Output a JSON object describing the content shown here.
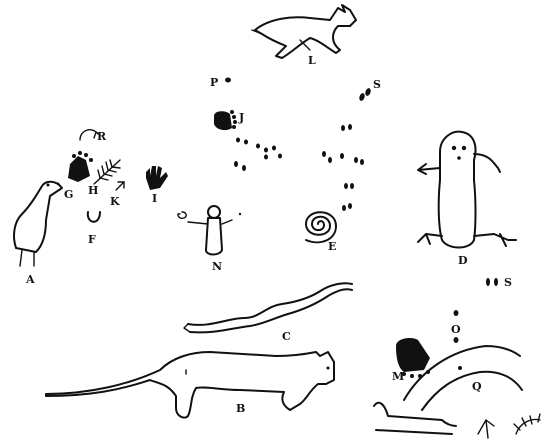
{
  "figure": {
    "labels": {
      "A": "A",
      "B": "B",
      "C": "C",
      "D": "D",
      "E": "E",
      "F": "F",
      "G": "G",
      "H": "H",
      "I": "I",
      "J": "J",
      "K": "K",
      "L": "L",
      "M": "M",
      "N": "N",
      "O": "O",
      "P": "P",
      "Q": "Q",
      "R": "R",
      "S1": "S",
      "S2": "S"
    },
    "glyphs": {
      "A": "bird-figure",
      "B": "panther-figure",
      "C": "serpent-figure",
      "D": "frog-figure",
      "E": "spiral",
      "F": "horseshoe",
      "G": "bear-paw",
      "H": "branch",
      "I": "hand-print",
      "J": "bear-paw",
      "K": "arrow",
      "L": "deer-figure",
      "M": "bear-paw",
      "N": "human-figure",
      "O": "dot",
      "P": "dot",
      "Q": "curved-lines",
      "R": "bow",
      "S": "tracks"
    },
    "ink_color": "#111111"
  }
}
